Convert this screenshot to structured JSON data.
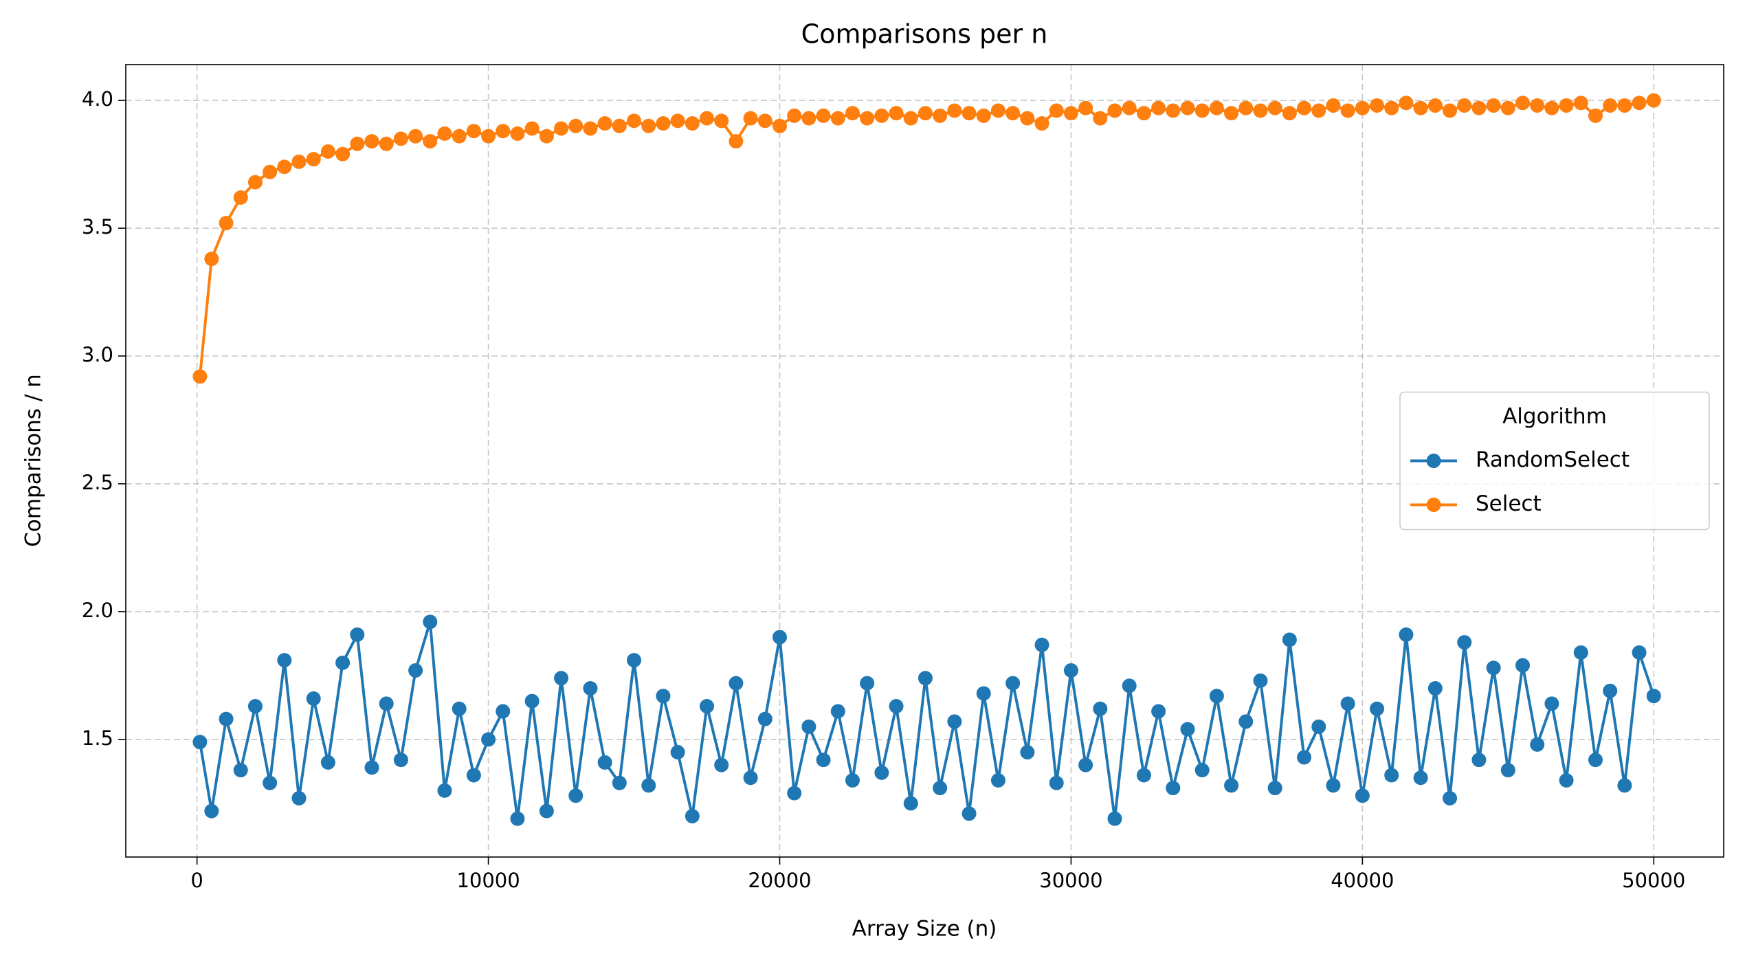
{
  "chart_data": {
    "type": "line",
    "title": "Comparisons per n",
    "xlabel": "Array Size (n)",
    "ylabel": "Comparisons / n",
    "x": [
      100,
      500,
      1000,
      1500,
      2000,
      2500,
      3000,
      3500,
      4000,
      4500,
      5000,
      5500,
      6000,
      6500,
      7000,
      7500,
      8000,
      8500,
      9000,
      9500,
      10000,
      10500,
      11000,
      11500,
      12000,
      12500,
      13000,
      13500,
      14000,
      14500,
      15000,
      15500,
      16000,
      16500,
      17000,
      17500,
      18000,
      18500,
      19000,
      19500,
      20000,
      20500,
      21000,
      21500,
      22000,
      22500,
      23000,
      23500,
      24000,
      24500,
      25000,
      25500,
      26000,
      26500,
      27000,
      27500,
      28000,
      28500,
      29000,
      29500,
      30000,
      30500,
      31000,
      31500,
      32000,
      32500,
      33000,
      33500,
      34000,
      34500,
      35000,
      35500,
      36000,
      36500,
      37000,
      37500,
      38000,
      38500,
      39000,
      39500,
      40000,
      40500,
      41000,
      41500,
      42000,
      42500,
      43000,
      43500,
      44000,
      44500,
      45000,
      45500,
      46000,
      46500,
      47000,
      47500,
      48000,
      48500,
      49000,
      49500,
      50000
    ],
    "series": [
      {
        "name": "RandomSelect",
        "color": "#1f77b4",
        "values": [
          1.49,
          1.22,
          1.58,
          1.38,
          1.63,
          1.33,
          1.81,
          1.27,
          1.66,
          1.41,
          1.8,
          1.91,
          1.39,
          1.64,
          1.42,
          1.77,
          1.96,
          1.3,
          1.62,
          1.36,
          1.5,
          1.61,
          1.19,
          1.65,
          1.22,
          1.74,
          1.28,
          1.7,
          1.41,
          1.33,
          1.81,
          1.32,
          1.67,
          1.45,
          1.2,
          1.63,
          1.4,
          1.72,
          1.35,
          1.58,
          1.9,
          1.29,
          1.55,
          1.42,
          1.61,
          1.34,
          1.72,
          1.37,
          1.63,
          1.25,
          1.74,
          1.31,
          1.57,
          1.21,
          1.68,
          1.34,
          1.72,
          1.45,
          1.87,
          1.33,
          1.77,
          1.4,
          1.62,
          1.19,
          1.71,
          1.36,
          1.61,
          1.31,
          1.54,
          1.38,
          1.67,
          1.32,
          1.57,
          1.73,
          1.31,
          1.89,
          1.43,
          1.55,
          1.32,
          1.64,
          1.28,
          1.62,
          1.36,
          1.91,
          1.35,
          1.7,
          1.27,
          1.88,
          1.42,
          1.78,
          1.38,
          1.79,
          1.48,
          1.64,
          1.34,
          1.84,
          1.42,
          1.69,
          1.32,
          1.84,
          1.67
        ]
      },
      {
        "name": "Select",
        "color": "#ff7f0e",
        "values": [
          2.92,
          3.38,
          3.52,
          3.62,
          3.68,
          3.72,
          3.74,
          3.76,
          3.77,
          3.8,
          3.79,
          3.83,
          3.84,
          3.83,
          3.85,
          3.86,
          3.84,
          3.87,
          3.86,
          3.88,
          3.86,
          3.88,
          3.87,
          3.89,
          3.86,
          3.89,
          3.9,
          3.89,
          3.91,
          3.9,
          3.92,
          3.9,
          3.91,
          3.92,
          3.91,
          3.93,
          3.92,
          3.84,
          3.93,
          3.92,
          3.9,
          3.94,
          3.93,
          3.94,
          3.93,
          3.95,
          3.93,
          3.94,
          3.95,
          3.93,
          3.95,
          3.94,
          3.96,
          3.95,
          3.94,
          3.96,
          3.95,
          3.93,
          3.91,
          3.96,
          3.95,
          3.97,
          3.93,
          3.96,
          3.97,
          3.95,
          3.97,
          3.96,
          3.97,
          3.96,
          3.97,
          3.95,
          3.97,
          3.96,
          3.97,
          3.95,
          3.97,
          3.96,
          3.98,
          3.96,
          3.97,
          3.98,
          3.97,
          3.99,
          3.97,
          3.98,
          3.96,
          3.98,
          3.97,
          3.98,
          3.97,
          3.99,
          3.98,
          3.97,
          3.98,
          3.99,
          3.94,
          3.98,
          3.98,
          3.99,
          4.0
        ]
      }
    ],
    "xlim": [
      -2445,
      52400
    ],
    "xticks": [
      0,
      10000,
      20000,
      30000,
      40000,
      50000
    ],
    "ylim": [
      1.04,
      4.14
    ],
    "yticks": [
      1.5,
      {
        "value": 2,
        "label": "2.0"
      },
      2.5,
      {
        "value": 3,
        "label": "3.0"
      },
      3.5,
      {
        "value": 4,
        "label": "4.0"
      }
    ],
    "grid": true,
    "legend_title": "Algorithm",
    "legend_position": "center right"
  }
}
